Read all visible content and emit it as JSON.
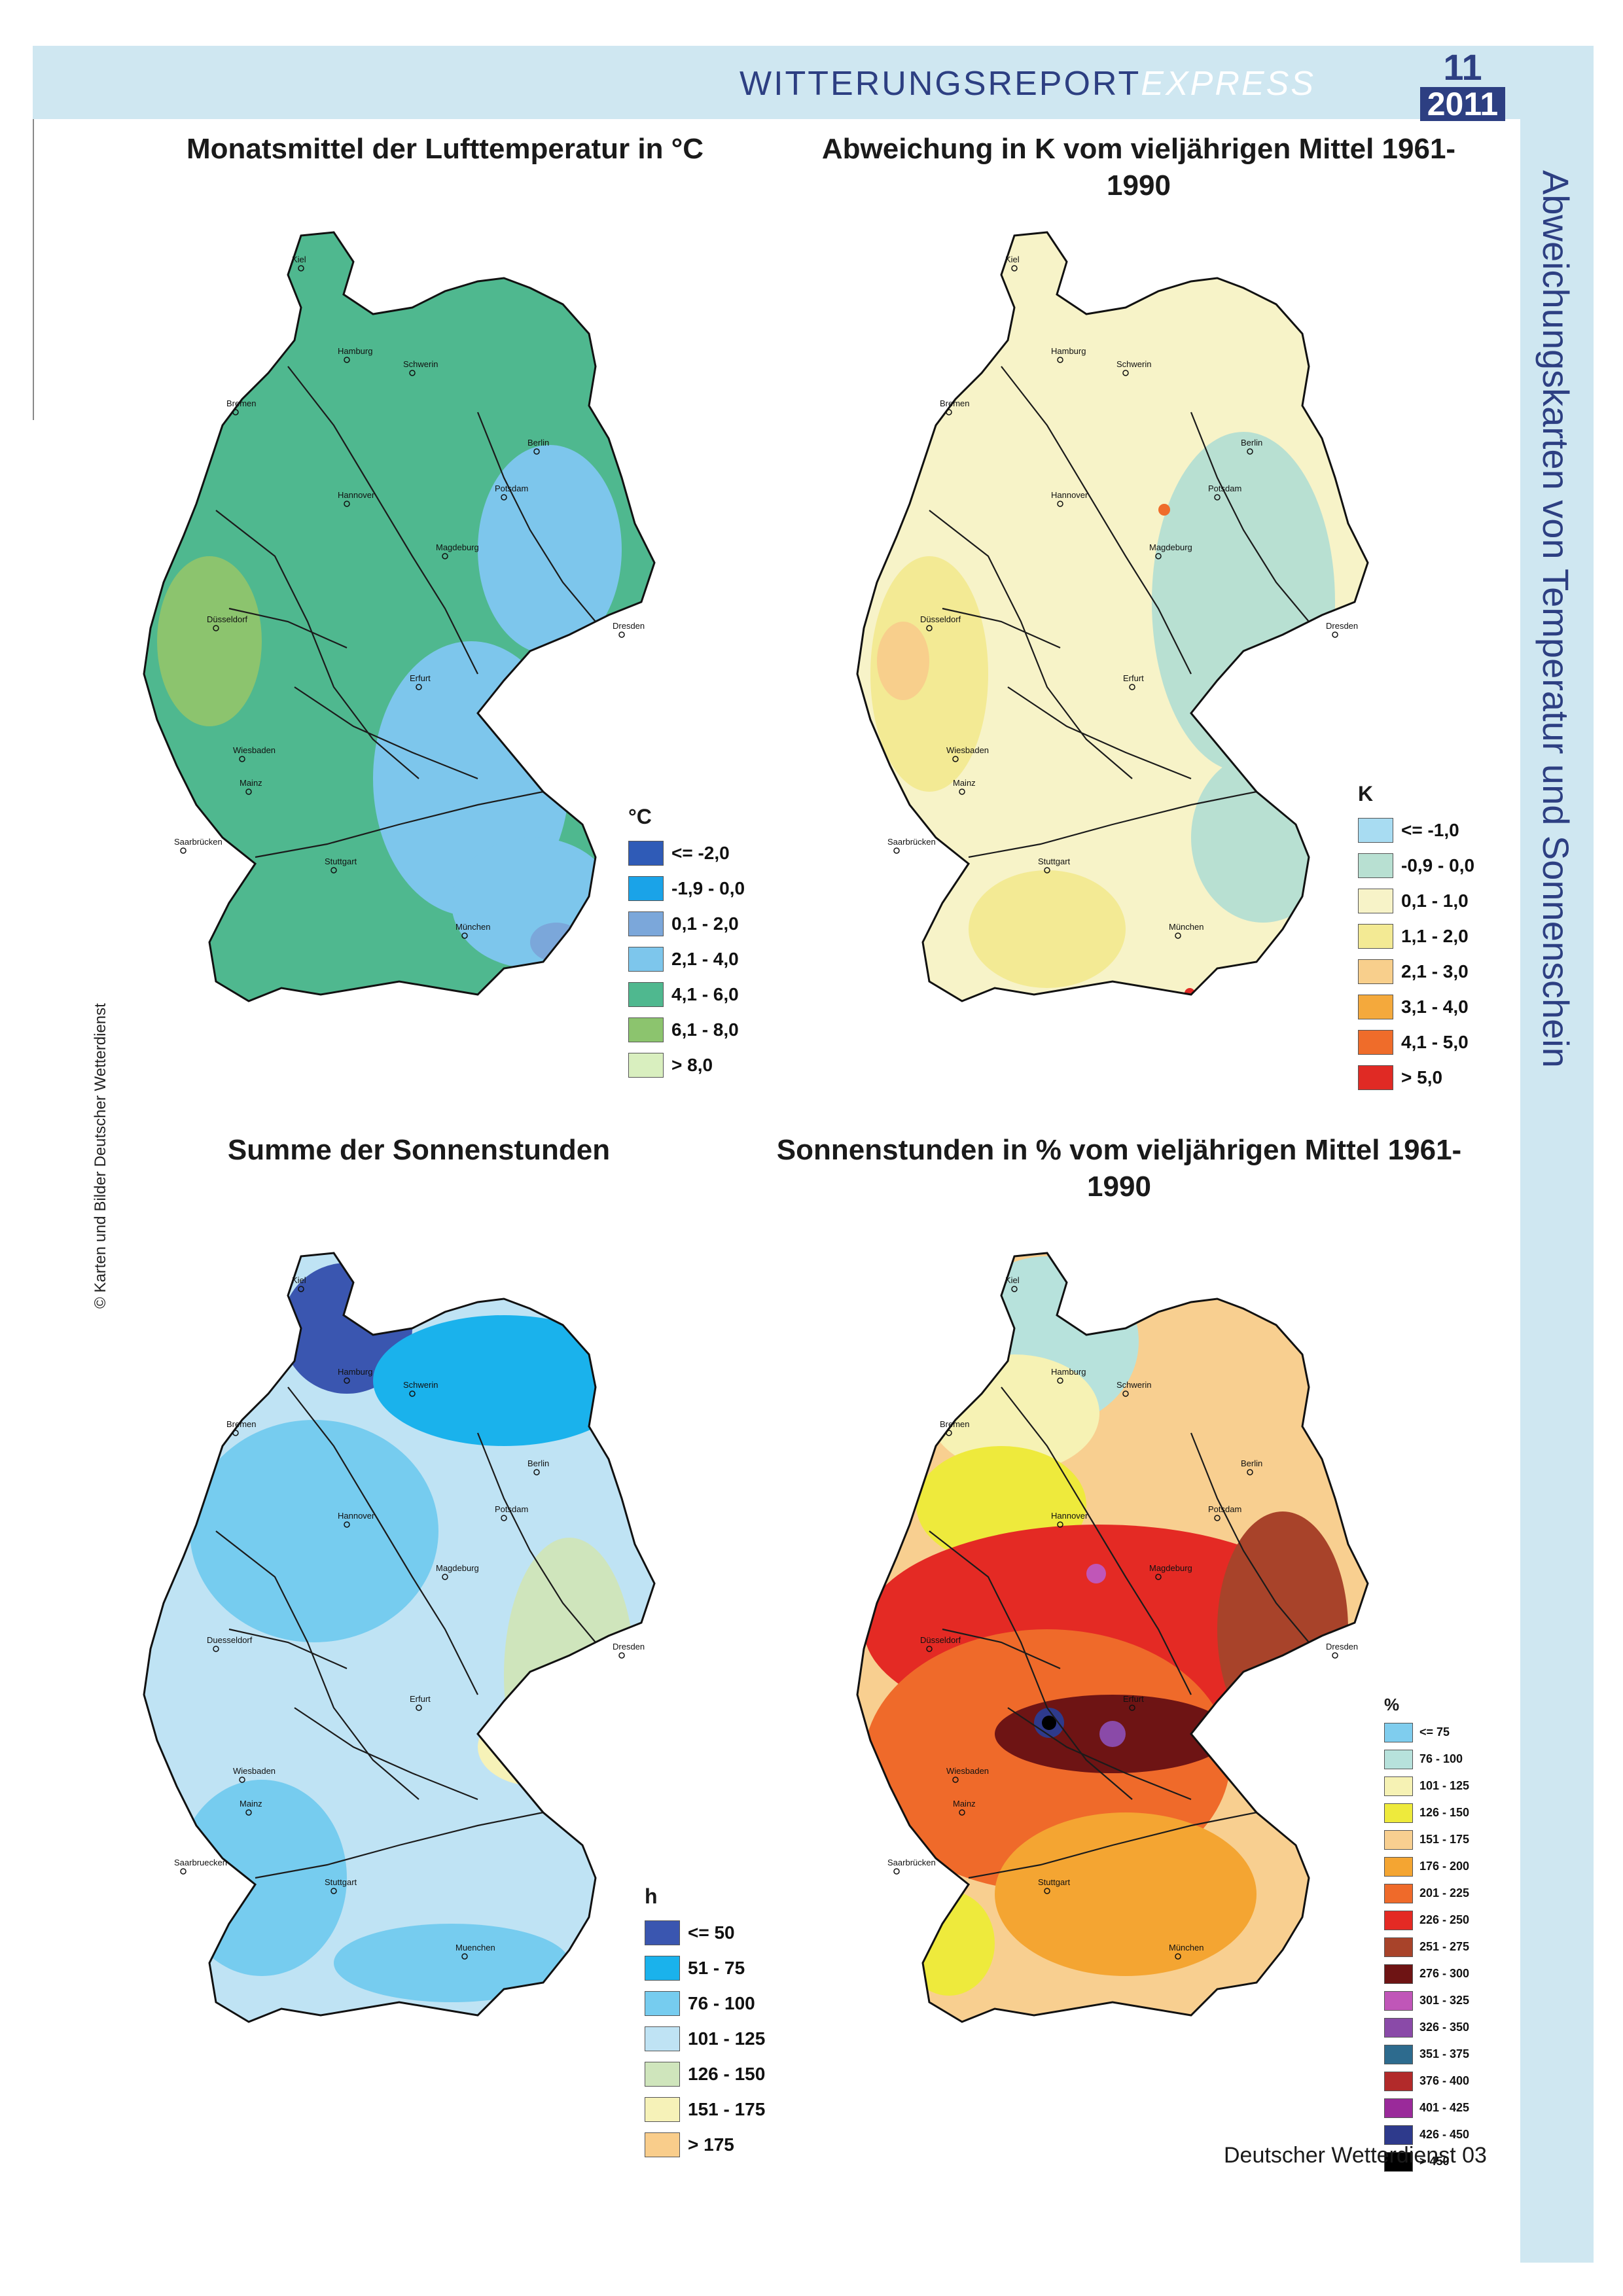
{
  "header": {
    "title_bold": "WITTERUNGSREPORT",
    "title_italic": "EXPRESS",
    "issue_number": "11",
    "issue_year": "2011"
  },
  "side_title": "Abweichungskarten von Temperatur und Sonnenschein",
  "credit": "© Karten und Bilder Deutscher Wetterdienst",
  "footer": "Deutscher Wetterdienst  03",
  "colors": {
    "band": "#cfe7f1",
    "accent": "#2d3f82"
  },
  "maps": [
    {
      "title": "Monatsmittel der Lufttemperatur in °C",
      "legend_unit": "°C",
      "legend": [
        {
          "label": "<= -2,0",
          "color": "#2f5bb7"
        },
        {
          "label": "-1,9 - 0,0",
          "color": "#1aa3e8"
        },
        {
          "label": "0,1 - 2,0",
          "color": "#7ba7da"
        },
        {
          "label": "2,1 - 4,0",
          "color": "#7dc6ec"
        },
        {
          "label": "4,1 - 6,0",
          "color": "#4fb88f"
        },
        {
          "label": "6,1 - 8,0",
          "color": "#8cc46e"
        },
        {
          "label": "> 8,0",
          "color": "#d9efbf"
        }
      ]
    },
    {
      "title": "Abweichung in K vom vieljährigen Mittel 1961-1990",
      "legend_unit": "K",
      "legend": [
        {
          "label": "<= -1,0",
          "color": "#a8dcf2"
        },
        {
          "label": "-0,9 - 0,0",
          "color": "#b8e0d2"
        },
        {
          "label": "0,1 - 1,0",
          "color": "#f7f3c8"
        },
        {
          "label": "1,1 - 2,0",
          "color": "#f3ea94"
        },
        {
          "label": "2,1 - 3,0",
          "color": "#f8cf8c"
        },
        {
          "label": "3,1 - 4,0",
          "color": "#f4a93c"
        },
        {
          "label": "4,1 - 5,0",
          "color": "#ef6c2a"
        },
        {
          "label": "> 5,0",
          "color": "#e02a24"
        }
      ]
    },
    {
      "title": "Summe der Sonnenstunden",
      "legend_unit": "h",
      "legend": [
        {
          "label": "<= 50",
          "color": "#3a56b0"
        },
        {
          "label": "51 - 75",
          "color": "#1ab2ec"
        },
        {
          "label": "76 - 100",
          "color": "#76ccef"
        },
        {
          "label": "101 - 125",
          "color": "#bfe3f4"
        },
        {
          "label": "126 - 150",
          "color": "#cfe5bc"
        },
        {
          "label": "151 - 175",
          "color": "#f6f2b8"
        },
        {
          "label": "> 175",
          "color": "#f9cd8b"
        }
      ]
    },
    {
      "title": "Sonnenstunden in % vom vieljährigen Mittel 1961-1990",
      "legend_unit": "%",
      "legend": [
        {
          "label": "<= 75",
          "color": "#7fcdee"
        },
        {
          "label": "76 - 100",
          "color": "#b7e2dc"
        },
        {
          "label": "101 - 125",
          "color": "#f6f2b4"
        },
        {
          "label": "126 - 150",
          "color": "#eeea3c"
        },
        {
          "label": "151 - 175",
          "color": "#f8cf90"
        },
        {
          "label": "176 - 200",
          "color": "#f4a532"
        },
        {
          "label": "201 - 225",
          "color": "#ef6a2a"
        },
        {
          "label": "226 - 250",
          "color": "#e42a24"
        },
        {
          "label": "251 - 275",
          "color": "#a8432a"
        },
        {
          "label": "276 - 300",
          "color": "#6e1414"
        },
        {
          "label": "301 - 325",
          "color": "#c056b8"
        },
        {
          "label": "326 - 350",
          "color": "#8a4aa8"
        },
        {
          "label": "351 - 375",
          "color": "#2d6b8e"
        },
        {
          "label": "376 - 400",
          "color": "#b22a2a"
        },
        {
          "label": "401 - 425",
          "color": "#9a2a9a"
        },
        {
          "label": "426 - 450",
          "color": "#2e3a8c"
        },
        {
          "label": "> 450",
          "color": "#000000"
        }
      ]
    }
  ],
  "cities": {
    "map1": [
      "Kiel",
      "Hamburg",
      "Schwerin",
      "Bremen",
      "Berlin",
      "Potsdam",
      "Hannover",
      "Magdeburg",
      "Düsseldorf",
      "Dresden",
      "Erfurt",
      "Wiesbaden",
      "Mainz",
      "Saarbrücken",
      "Stuttgart",
      "München"
    ],
    "map2": [
      "Kiel",
      "Hamburg",
      "Schwerin",
      "Bremen",
      "Berlin",
      "Potsdam",
      "Hannover",
      "Magdeburg",
      "Düsseldorf",
      "Dresden",
      "Erfurt",
      "Wiesbaden",
      "Mainz",
      "Saarbrücken",
      "Stuttgart",
      "München"
    ],
    "map3": [
      "Kiel",
      "Hamburg",
      "Schwerin",
      "Bremen",
      "Berlin",
      "Potsdam",
      "Hannover",
      "Magdeburg",
      "Duesseldorf",
      "Dresden",
      "Erfurt",
      "Wiesbaden",
      "Mainz",
      "Saarbruecken",
      "Stuttgart",
      "Muenchen"
    ],
    "map4": [
      "Kiel",
      "Hamburg",
      "Schwerin",
      "Bremen",
      "Berlin",
      "Potsdam",
      "Hannover",
      "Magdeburg",
      "Düsseldorf",
      "Dresden",
      "Erfurt",
      "Wiesbaden",
      "Mainz",
      "Saarbrücken",
      "Stuttgart",
      "München"
    ]
  }
}
